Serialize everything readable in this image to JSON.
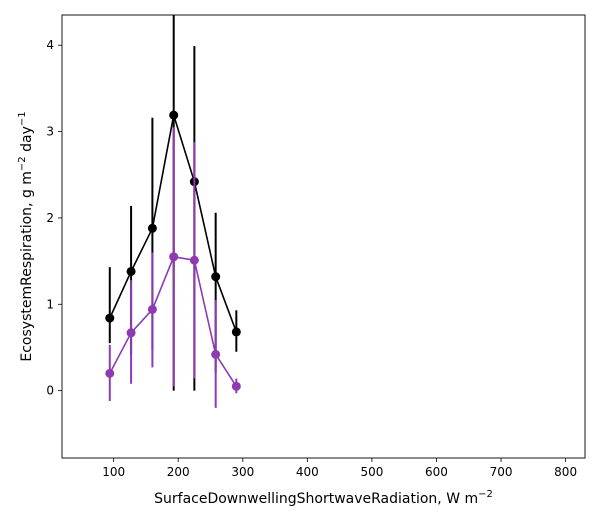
{
  "chart_data": {
    "type": "line",
    "xlabel": "SurfaceDownwellingShortwaveRadiation,  W m",
    "xlabel_sup": "−2",
    "ylabel_parts": [
      "EcosystemRespiration,  g m",
      "−2",
      " day",
      "−1"
    ],
    "xlim": [
      20,
      830
    ],
    "ylim": [
      -0.78,
      4.35
    ],
    "xticks": [
      100,
      200,
      300,
      400,
      500,
      600,
      700,
      800
    ],
    "yticks": [
      0,
      1,
      2,
      3,
      4
    ],
    "grid": false,
    "series": [
      {
        "color": "#000000",
        "x": [
          94,
          127,
          160,
          193,
          225,
          258,
          290
        ],
        "y": [
          0.84,
          1.38,
          1.88,
          3.19,
          2.42,
          1.32,
          0.68
        ],
        "err_low": [
          0.55,
          0.42,
          0.47,
          0.0,
          0.0,
          0.21,
          0.45
        ],
        "err_high": [
          1.43,
          2.14,
          3.16,
          4.35,
          3.99,
          2.06,
          0.93
        ]
      },
      {
        "color": "#8e3ab3",
        "x": [
          94,
          127,
          160,
          193,
          225,
          258,
          290
        ],
        "y": [
          0.2,
          0.67,
          0.94,
          1.55,
          1.51,
          0.42,
          0.05
        ],
        "err_low": [
          -0.12,
          0.08,
          0.27,
          0.05,
          0.14,
          -0.2,
          -0.03
        ],
        "err_high": [
          0.53,
          1.28,
          1.6,
          3.05,
          2.88,
          1.05,
          0.14
        ]
      }
    ]
  }
}
